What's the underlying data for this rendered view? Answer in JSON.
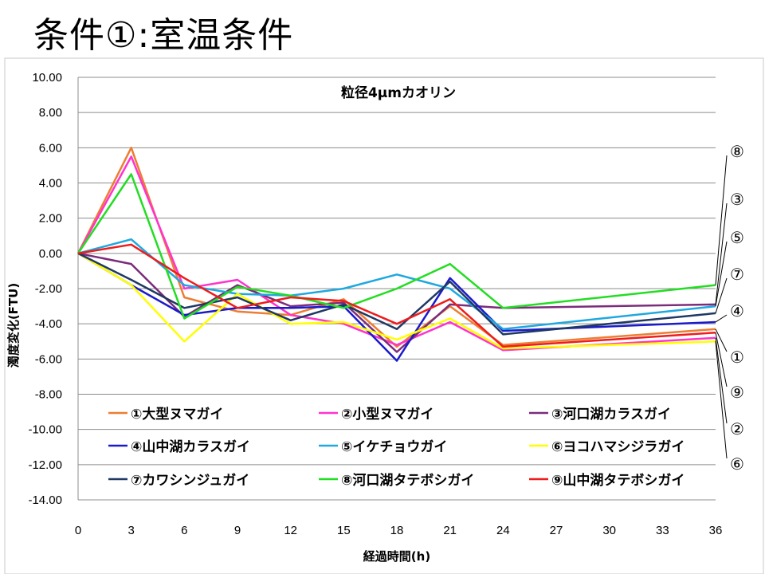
{
  "slide": {
    "title": "条件①:室温条件"
  },
  "chart_data": {
    "type": "line",
    "title": "粒径4μmカオリン",
    "xlabel": "経過時間(h)",
    "ylabel": "濁度変化(FTU)",
    "xlim": [
      0,
      36
    ],
    "ylim": [
      -14,
      10
    ],
    "x_ticks": [
      0,
      3,
      6,
      9,
      12,
      15,
      18,
      21,
      24,
      27,
      30,
      33,
      36
    ],
    "y_ticks": [
      "10.00",
      "8.00",
      "6.00",
      "4.00",
      "2.00",
      "0.00",
      "-2.00",
      "-4.00",
      "-6.00",
      "-8.00",
      "-10.00",
      "-12.00",
      "-14.00"
    ],
    "grid": "horizontal",
    "legend": "bottom-inside",
    "series": [
      {
        "name": "①大型ヌマガイ",
        "color": "#ED7D31",
        "points": [
          [
            0,
            0
          ],
          [
            3,
            6.0
          ],
          [
            6,
            -2.5
          ],
          [
            9,
            -3.3
          ],
          [
            12,
            -3.5
          ],
          [
            15,
            -2.6
          ],
          [
            18,
            -5.3
          ],
          [
            21,
            -3.0
          ],
          [
            24,
            -5.2
          ],
          [
            36,
            -4.3
          ]
        ]
      },
      {
        "name": "②小型ヌマガイ",
        "color": "#FF33CC",
        "points": [
          [
            0,
            0
          ],
          [
            3,
            5.5
          ],
          [
            6,
            -2.0
          ],
          [
            9,
            -1.5
          ],
          [
            12,
            -3.5
          ],
          [
            15,
            -4.0
          ],
          [
            18,
            -5.2
          ],
          [
            21,
            -3.9
          ],
          [
            24,
            -5.5
          ],
          [
            36,
            -4.8
          ]
        ]
      },
      {
        "name": "③河口湖カラスガイ",
        "color": "#7B2C7B",
        "points": [
          [
            0,
            0
          ],
          [
            3,
            -0.6
          ],
          [
            6,
            -3.6
          ],
          [
            9,
            -1.8
          ],
          [
            12,
            -3.0
          ],
          [
            15,
            -2.8
          ],
          [
            18,
            -5.6
          ],
          [
            21,
            -2.9
          ],
          [
            24,
            -3.1
          ],
          [
            36,
            -2.9
          ]
        ]
      },
      {
        "name": "④山中湖カラスガイ",
        "color": "#1A1ACC",
        "points": [
          [
            0,
            0
          ],
          [
            3,
            -1.8
          ],
          [
            6,
            -3.5
          ],
          [
            9,
            -3.1
          ],
          [
            12,
            -3.1
          ],
          [
            15,
            -3.0
          ],
          [
            18,
            -6.1
          ],
          [
            21,
            -1.4
          ],
          [
            24,
            -4.4
          ],
          [
            36,
            -3.9
          ]
        ]
      },
      {
        "name": "⑤イケチョウガイ",
        "color": "#1FA8E0",
        "points": [
          [
            0,
            0
          ],
          [
            3,
            0.8
          ],
          [
            6,
            -1.8
          ],
          [
            9,
            -2.3
          ],
          [
            12,
            -2.4
          ],
          [
            15,
            -2.0
          ],
          [
            18,
            -1.2
          ],
          [
            21,
            -2.0
          ],
          [
            24,
            -4.3
          ],
          [
            36,
            -3.0
          ]
        ]
      },
      {
        "name": "⑥ヨコハマシジラガイ",
        "color": "#FFFF00",
        "points": [
          [
            0,
            0
          ],
          [
            3,
            -1.8
          ],
          [
            6,
            -5.0
          ],
          [
            9,
            -2.3
          ],
          [
            12,
            -4.0
          ],
          [
            15,
            -3.9
          ],
          [
            18,
            -4.9
          ],
          [
            21,
            -3.7
          ],
          [
            24,
            -5.4
          ],
          [
            36,
            -5.0
          ]
        ]
      },
      {
        "name": "⑦カワシンジュガイ",
        "color": "#1F3864",
        "points": [
          [
            0,
            0
          ],
          [
            3,
            -1.5
          ],
          [
            6,
            -3.1
          ],
          [
            9,
            -2.5
          ],
          [
            12,
            -3.8
          ],
          [
            15,
            -2.9
          ],
          [
            18,
            -4.3
          ],
          [
            21,
            -1.6
          ],
          [
            24,
            -4.6
          ],
          [
            36,
            -3.4
          ]
        ]
      },
      {
        "name": "⑧河口湖タテボシガイ",
        "color": "#22DD22",
        "points": [
          [
            0,
            0
          ],
          [
            3,
            4.5
          ],
          [
            6,
            -3.7
          ],
          [
            9,
            -1.9
          ],
          [
            12,
            -2.4
          ],
          [
            15,
            -3.1
          ],
          [
            18,
            -2.0
          ],
          [
            21,
            -0.6
          ],
          [
            24,
            -3.1
          ],
          [
            36,
            -1.8
          ]
        ]
      },
      {
        "name": "⑨山中湖タテボシガイ",
        "color": "#EE1C1C",
        "points": [
          [
            0,
            0
          ],
          [
            3,
            0.5
          ],
          [
            6,
            -1.4
          ],
          [
            9,
            -3.1
          ],
          [
            12,
            -2.5
          ],
          [
            15,
            -2.7
          ],
          [
            18,
            -4.0
          ],
          [
            21,
            -2.6
          ],
          [
            24,
            -5.3
          ],
          [
            36,
            -4.5
          ]
        ]
      }
    ],
    "callouts": [
      "⑧",
      "③",
      "⑤",
      "⑦",
      "④",
      "①",
      "⑨",
      "②",
      "⑥"
    ]
  }
}
